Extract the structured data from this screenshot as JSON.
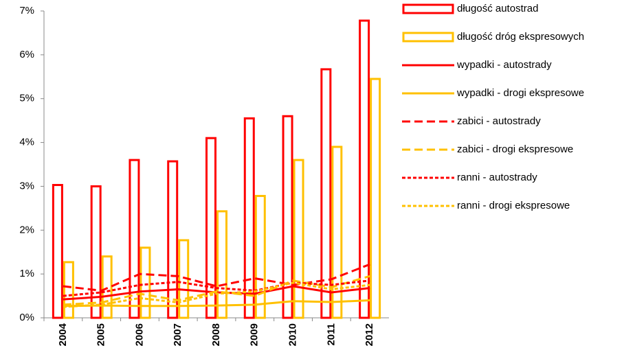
{
  "chart_data": {
    "type": "bar",
    "categories": [
      "2004",
      "2005",
      "2006",
      "2007",
      "2008",
      "2009",
      "2010",
      "2011",
      "2012"
    ],
    "series": [
      {
        "name": "długość autostrad",
        "type": "bar",
        "color": "#ff0000",
        "values": [
          3.03,
          3.0,
          3.6,
          3.57,
          4.1,
          4.55,
          4.6,
          5.67,
          6.78
        ]
      },
      {
        "name": "długość dróg ekspresowych",
        "type": "bar",
        "color": "#ffc000",
        "values": [
          1.27,
          1.4,
          1.6,
          1.77,
          2.43,
          2.78,
          3.6,
          3.9,
          5.45
        ]
      },
      {
        "name": "wypadki - autostrady",
        "type": "line",
        "style": "solid",
        "color": "#ff0000",
        "values": [
          0.42,
          0.48,
          0.6,
          0.65,
          0.58,
          0.55,
          0.72,
          0.58,
          0.68
        ]
      },
      {
        "name": "wypadki - drogi ekspresowe",
        "type": "line",
        "style": "solid",
        "color": "#ffc000",
        "values": [
          0.27,
          0.28,
          0.27,
          0.27,
          0.28,
          0.3,
          0.38,
          0.36,
          0.4
        ]
      },
      {
        "name": "zabici - autostrady",
        "type": "line",
        "style": "dashed",
        "color": "#ff0000",
        "values": [
          0.72,
          0.62,
          1.0,
          0.95,
          0.72,
          0.9,
          0.75,
          0.88,
          1.22
        ]
      },
      {
        "name": "zabici - drogi ekspresowe",
        "type": "line",
        "style": "dashed",
        "color": "#ffc000",
        "values": [
          0.3,
          0.35,
          0.55,
          0.4,
          0.6,
          0.5,
          0.85,
          0.7,
          0.95
        ]
      },
      {
        "name": "ranni - autostrady",
        "type": "line",
        "style": "dotted",
        "color": "#ff0000",
        "values": [
          0.5,
          0.58,
          0.75,
          0.82,
          0.68,
          0.62,
          0.8,
          0.75,
          0.85
        ]
      },
      {
        "name": "ranni - drogi ekspresowe",
        "type": "line",
        "style": "dotted",
        "color": "#ffc000",
        "values": [
          0.25,
          0.3,
          0.45,
          0.35,
          0.55,
          0.6,
          0.8,
          0.65,
          0.75
        ]
      }
    ],
    "ylim": [
      0,
      7
    ],
    "yticks": [
      {
        "value": 0,
        "label": "0%"
      },
      {
        "value": 1,
        "label": "1%"
      },
      {
        "value": 2,
        "label": "2%"
      },
      {
        "value": 3,
        "label": "3%"
      },
      {
        "value": 4,
        "label": "4%"
      },
      {
        "value": 5,
        "label": "5%"
      },
      {
        "value": 6,
        "label": "6%"
      },
      {
        "value": 7,
        "label": "7%"
      }
    ],
    "grid": false,
    "legend": "right"
  }
}
